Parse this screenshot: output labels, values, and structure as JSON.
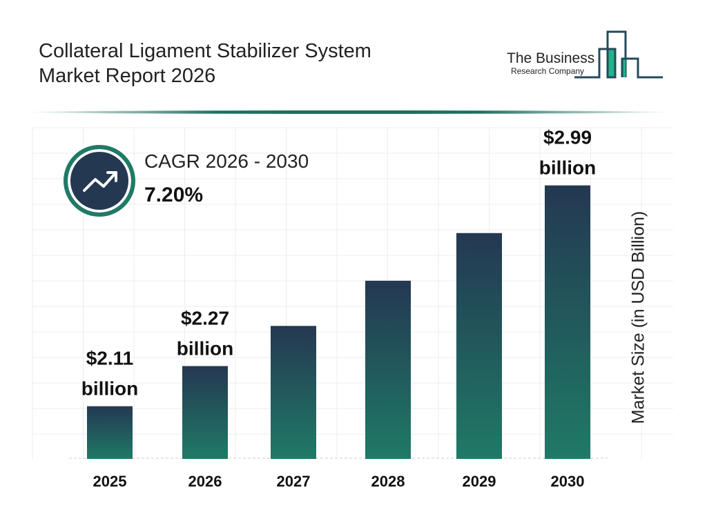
{
  "header": {
    "title_line1": "Collateral Ligament Stabilizer System",
    "title_line2": "Market Report 2026"
  },
  "logo": {
    "line1": "The Business",
    "line2": "Research Company"
  },
  "cagr": {
    "label": "CAGR 2026 - 2030",
    "value": "7.20%",
    "icon": "trending-up-icon"
  },
  "colors": {
    "bar_top": "#243852",
    "bar_bottom": "#1f7a66",
    "accent": "#1f6f5f"
  },
  "chart_data": {
    "type": "bar",
    "categories": [
      "2025",
      "2026",
      "2027",
      "2028",
      "2029",
      "2030"
    ],
    "values": [
      2.11,
      2.27,
      2.43,
      2.61,
      2.8,
      2.99
    ],
    "data_labels": [
      {
        "index": 0,
        "value": "$2.11",
        "unit": "billion"
      },
      {
        "index": 1,
        "value": "$2.27",
        "unit": "billion"
      },
      {
        "index": 5,
        "value": "$2.99",
        "unit": "billion"
      }
    ],
    "title": "",
    "xlabel": "",
    "ylabel": "Market Size (in USD Billion)",
    "ylim": [
      1.9,
      3.0
    ],
    "grid": true
  }
}
